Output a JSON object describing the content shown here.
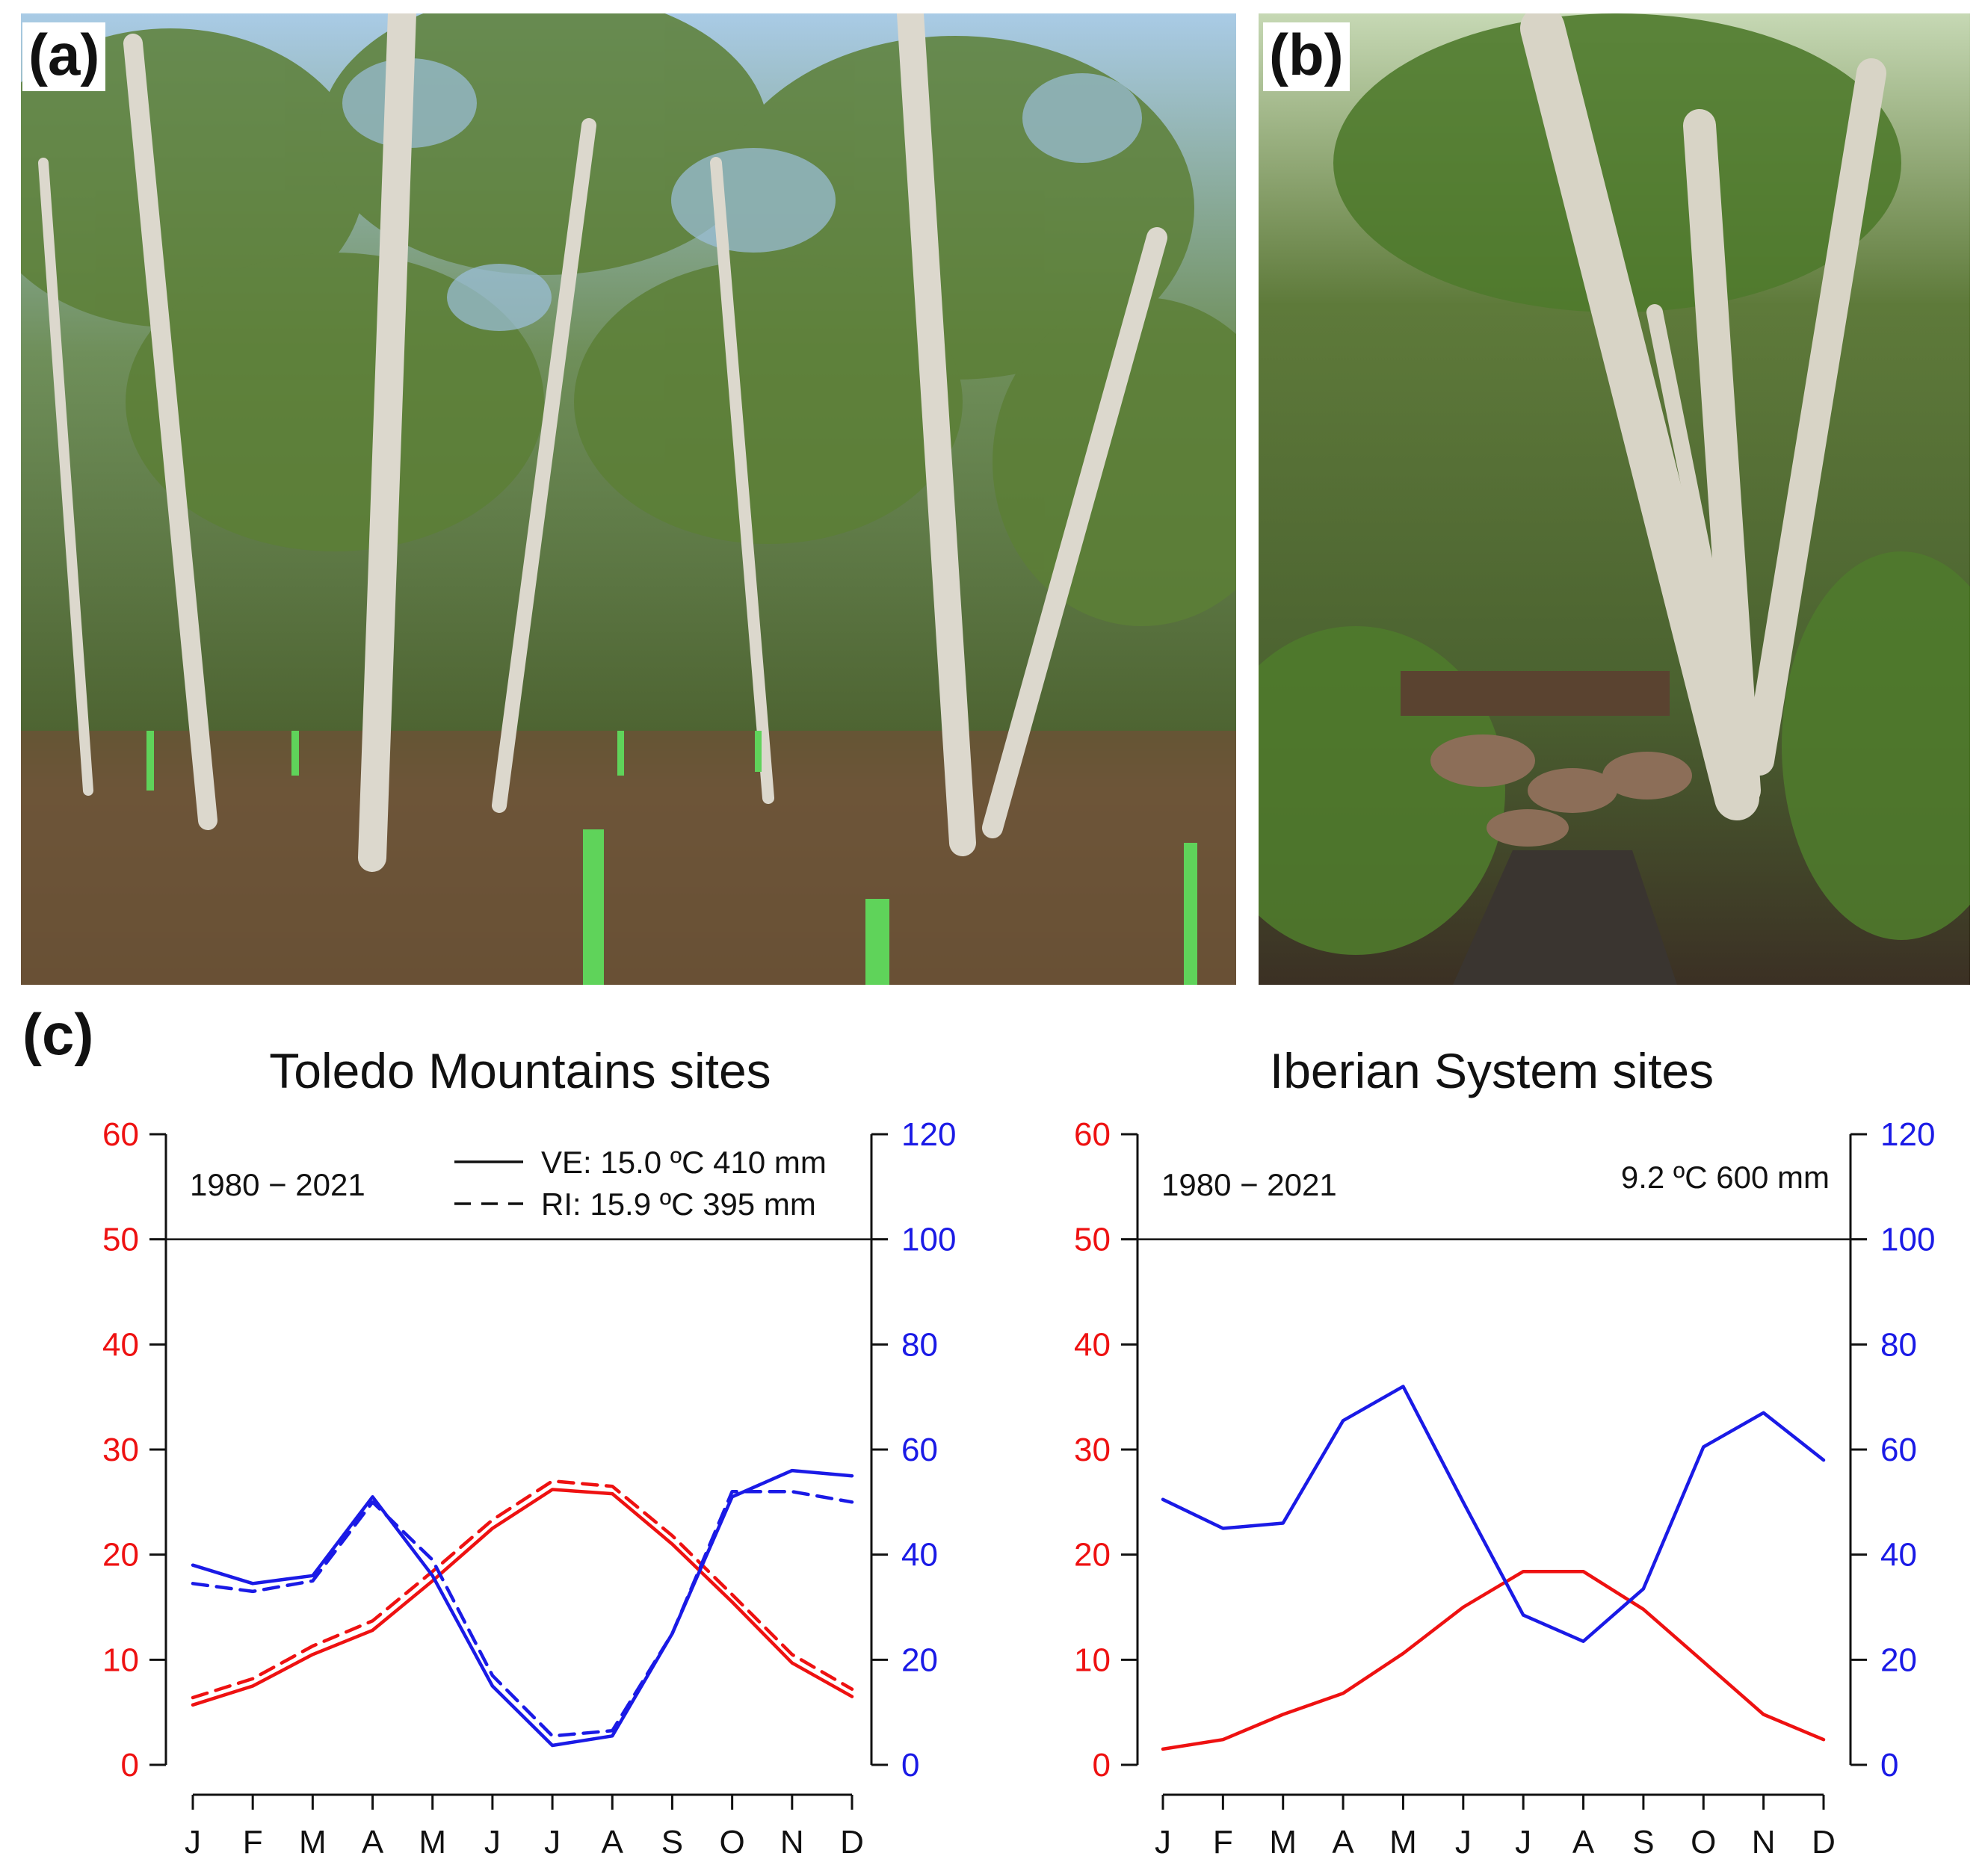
{
  "panels": {
    "a": {
      "label": "(a)"
    },
    "b": {
      "label": "(b)"
    },
    "c": {
      "label": "(c)"
    }
  },
  "colors": {
    "temperature": "#ee1111",
    "precipitation": "#1a1ae6",
    "axis": "#111111",
    "photo_sky": "#9fc3e0",
    "photo_foliage": "#4f6e32",
    "photo_ground": "#6a5238",
    "photo_bark": "#d9d6cc",
    "tree_guard": "#5fd35a"
  },
  "chart_data": [
    {
      "type": "line",
      "title": "Toledo Mountains sites",
      "period": "1980 − 2021",
      "x": [
        "J",
        "F",
        "M",
        "A",
        "M",
        "J",
        "J",
        "A",
        "S",
        "O",
        "N",
        "D"
      ],
      "y_left": {
        "ticks": [
          0,
          10,
          20,
          30,
          40,
          50,
          60
        ],
        "range": [
          0,
          60
        ],
        "color": "#ee1111",
        "quantity": "temperature (°C)"
      },
      "y_right": {
        "ticks": [
          0,
          20,
          40,
          60,
          80,
          100,
          120
        ],
        "range": [
          0,
          120
        ],
        "color": "#1a1ae6",
        "quantity": "precipitation (mm)"
      },
      "reference_line": 50,
      "legend": [
        {
          "style": "solid",
          "text": "VE: 15.0 ºC  410 mm"
        },
        {
          "style": "dashed",
          "text": "RI: 15.9 ºC  395 mm"
        }
      ],
      "series": [
        {
          "site": "VE",
          "variable": "temperature",
          "axis": "left",
          "style": "solid",
          "values": [
            5.7,
            7.5,
            10.5,
            12.8,
            17.5,
            22.5,
            26.2,
            25.8,
            21.0,
            15.5,
            9.7,
            6.5
          ]
        },
        {
          "site": "RI",
          "variable": "temperature",
          "axis": "left",
          "style": "dashed",
          "values": [
            6.4,
            8.2,
            11.3,
            13.7,
            18.4,
            23.3,
            27.0,
            26.5,
            21.8,
            16.2,
            10.5,
            7.2
          ]
        },
        {
          "site": "VE",
          "variable": "precipitation",
          "axis": "right",
          "style": "solid",
          "values": [
            38,
            34.5,
            36,
            51,
            36,
            15,
            3.7,
            5.5,
            25,
            51,
            56,
            55
          ]
        },
        {
          "site": "RI",
          "variable": "precipitation",
          "axis": "right",
          "style": "dashed",
          "values": [
            34.5,
            33,
            35,
            50,
            39,
            17,
            5.5,
            6.5,
            25,
            52,
            52,
            50
          ]
        }
      ]
    },
    {
      "type": "line",
      "title": "Iberian System sites",
      "period": "1980 − 2021",
      "x": [
        "J",
        "F",
        "M",
        "A",
        "M",
        "J",
        "J",
        "A",
        "S",
        "O",
        "N",
        "D"
      ],
      "y_left": {
        "ticks": [
          0,
          10,
          20,
          30,
          40,
          50,
          60
        ],
        "range": [
          0,
          60
        ],
        "color": "#ee1111",
        "quantity": "temperature (°C)"
      },
      "y_right": {
        "ticks": [
          0,
          20,
          40,
          60,
          80,
          100,
          120
        ],
        "range": [
          0,
          120
        ],
        "color": "#1a1ae6",
        "quantity": "precipitation (mm)"
      },
      "reference_line": 50,
      "legend": [
        {
          "style": "none",
          "text": "9.2 ºC  600 mm"
        }
      ],
      "series": [
        {
          "variable": "temperature",
          "axis": "left",
          "style": "solid",
          "values": [
            1.5,
            2.4,
            4.8,
            6.8,
            10.6,
            15.0,
            18.4,
            18.4,
            14.8,
            9.8,
            4.8,
            2.4
          ]
        },
        {
          "variable": "precipitation",
          "axis": "right",
          "style": "solid",
          "values": [
            50.5,
            45,
            46,
            65.5,
            72,
            50,
            28.5,
            23.5,
            33.5,
            60.5,
            67,
            58
          ]
        }
      ]
    }
  ]
}
